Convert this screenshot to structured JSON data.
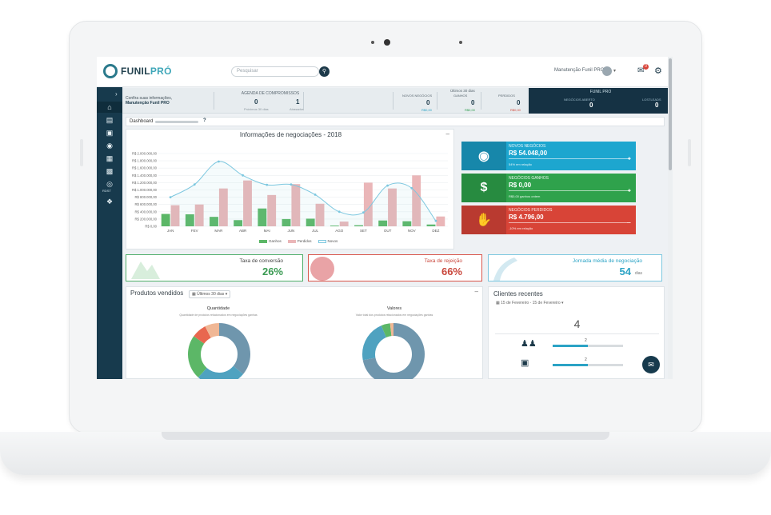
{
  "header": {
    "logo_main": "FUNIL",
    "logo_accent": "PRÓ",
    "search_placeholder": "Pesquisar",
    "user_name": "Manutenção Funil PRO",
    "notifications_count": "0"
  },
  "sidebar": {
    "items": [
      "home-icon",
      "gift-icon",
      "bank-icon",
      "dollar-icon",
      "calendar-icon",
      "bar-chart-icon",
      "rdst-icon",
      "puzzle-icon"
    ],
    "rdst_label": "RDST"
  },
  "stats": {
    "info_line1": "Confira suas informações,",
    "info_line2": "Manutenção Funil PRO",
    "agenda_title": "AGENDA DE COMPROMISSOS",
    "agenda_next_value": "0",
    "agenda_next_label": "Próximos 30 dias",
    "agenda_late_value": "1",
    "agenda_late_label": "Atrasados",
    "last_days": "Últimos 30 dias",
    "novos_label": "NOVOS NEGÓCIOS",
    "novos_value": "0",
    "novos_sub": "R$0,00",
    "ganhos_label": "GANHOS",
    "ganhos_value": "0",
    "ganhos_sub": "R$0,00",
    "perdidos_label": "PERDIDOS",
    "perdidos_value": "0",
    "perdidos_sub": "R$0,00",
    "dark_title": "FUNIL PRO",
    "aberto_label": "NEGÓCIOS ABERTO",
    "aberto_value": "0",
    "lost_label": "LOSTLEADS",
    "lost_value": "0"
  },
  "crumb": {
    "label": "Dashboard"
  },
  "chart_panel": {
    "title": "Informações de negociações - 2018",
    "minimize": "–"
  },
  "chart_data": {
    "type": "bar",
    "title": "Informações de negociações - 2018",
    "categories": [
      "JAN",
      "FEV",
      "MAR",
      "ABR",
      "MAI",
      "JUN",
      "JUL",
      "AGO",
      "SET",
      "OUT",
      "NOV",
      "DEZ"
    ],
    "y_ticks": [
      "R$ 0,00",
      "R$ 200.000,00",
      "R$ 400.000,00",
      "R$ 600.000,00",
      "R$ 800.000,00",
      "R$ 1.000.000,00",
      "R$ 1.200.000,00",
      "R$ 1.400.000,00",
      "R$ 1.600.000,00",
      "R$ 1.800.000,00",
      "R$ 2.000.000,00"
    ],
    "ylim": [
      0,
      2000000
    ],
    "series": [
      {
        "name": "Ganhos",
        "kind": "bar",
        "color": "#5cb767",
        "values": [
          340000,
          330000,
          260000,
          170000,
          490000,
          200000,
          210000,
          20000,
          30000,
          160000,
          140000,
          50000
        ]
      },
      {
        "name": "Perdidos",
        "kind": "bar",
        "color": "#eab6b8",
        "values": [
          580000,
          600000,
          1040000,
          1260000,
          860000,
          1160000,
          620000,
          130000,
          1200000,
          1040000,
          1400000,
          270000
        ]
      },
      {
        "name": "Novos",
        "kind": "line",
        "color": "#7cc7df",
        "values": [
          800000,
          1150000,
          1780000,
          1400000,
          1140000,
          1150000,
          870000,
          400000,
          380000,
          1120000,
          1050000,
          150000
        ]
      }
    ],
    "legend_position": "bottom",
    "grid": true
  },
  "kpis": [
    {
      "title": "NOVOS NEGÓCIOS",
      "value": "R$ 54.048,00",
      "sub": "54% em relação",
      "color": "#1da6cf",
      "icon_color": "#1787aa",
      "icon": "$"
    },
    {
      "title": "NEGÓCIOS GANHOS",
      "value": "R$ 0,00",
      "sub": "R$0,00 ganhos ontem",
      "color": "#2fa24c",
      "icon_color": "#278b40",
      "icon": "$"
    },
    {
      "title": "NEGÓCIOS PERDIDOS",
      "value": "R$ 4.796,00",
      "sub": "-10% em relação",
      "color": "#d84437",
      "icon_color": "#b93a30",
      "icon": "✋"
    }
  ],
  "rates": {
    "conversion_label": "Taxa de conversão",
    "conversion_value": "26%",
    "rejection_label": "Taxa de rejeição",
    "rejection_value": "66%",
    "journey_label": "Jornada média de negociação",
    "journey_value": "54",
    "journey_unit": "dias"
  },
  "products": {
    "title": "Produtos vendidos",
    "filter": "Últimos 30 dias",
    "qty_title": "Quantidade",
    "qty_sub": "Quantidade de produtos relacionados em negociações ganhas",
    "val_title": "Valores",
    "val_sub": "Valor total dos produtos relacionados em negociações ganhas"
  },
  "clients": {
    "title": "Clientes recentes",
    "range": "15 de Fevereiro - 15 de Fevereiro",
    "total": "4",
    "row1_value": "2",
    "row2_value": "2"
  }
}
